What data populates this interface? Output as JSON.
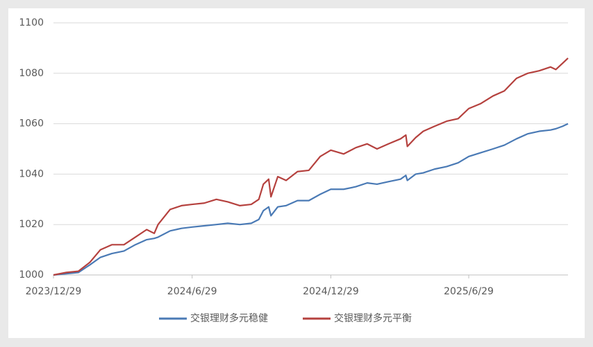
{
  "chart_data": {
    "type": "line",
    "x": [
      "2023/12/29",
      "2024/1/15",
      "2024/1/31",
      "2024/2/15",
      "2024/2/29",
      "2024/3/15",
      "2024/3/31",
      "2024/4/15",
      "2024/4/30",
      "2024/5/10",
      "2024/5/15",
      "2024/5/31",
      "2024/6/15",
      "2024/6/29",
      "2024/7/15",
      "2024/7/31",
      "2024/8/15",
      "2024/8/31",
      "2024/9/15",
      "2024/9/25",
      "2024/10/1",
      "2024/10/8",
      "2024/10/11",
      "2024/10/20",
      "2024/10/31",
      "2024/11/15",
      "2024/11/30",
      "2024/12/15",
      "2024/12/29",
      "2025/1/15",
      "2025/1/31",
      "2025/2/15",
      "2025/2/28",
      "2025/3/15",
      "2025/3/31",
      "2025/4/7",
      "2025/4/9",
      "2025/4/20",
      "2025/4/30",
      "2025/5/15",
      "2025/5/31",
      "2025/6/15",
      "2025/6/29",
      "2025/7/15",
      "2025/7/31",
      "2025/8/15",
      "2025/8/31",
      "2025/9/15",
      "2025/9/30",
      "2025/10/15",
      "2025/10/22",
      "2025/10/31",
      "2025/11/7"
    ],
    "series": [
      {
        "name": "交银理财多元稳健",
        "color": "#4a7ab5",
        "values": [
          1000,
          1000.5,
          1001,
          1004,
          1007,
          1008.5,
          1009.5,
          1012,
          1014,
          1014.5,
          1015,
          1017.5,
          1018.5,
          1019,
          1019.5,
          1020,
          1020.5,
          1020,
          1020.5,
          1022,
          1025.5,
          1027,
          1023.5,
          1027,
          1027.5,
          1029.5,
          1029.5,
          1032,
          1034,
          1034,
          1035,
          1036.5,
          1036,
          1037,
          1038,
          1039.5,
          1037.5,
          1040,
          1040.5,
          1042,
          1043,
          1044.5,
          1047,
          1048.5,
          1050,
          1051.5,
          1054,
          1056,
          1057,
          1057.5,
          1058,
          1059,
          1060
        ]
      },
      {
        "name": "交银理财多元平衡",
        "color": "#b5413e",
        "values": [
          1000,
          1001,
          1001.5,
          1005,
          1010,
          1012,
          1012,
          1015,
          1018,
          1016.5,
          1020,
          1026,
          1027.5,
          1028,
          1028.5,
          1030,
          1029,
          1027.5,
          1028,
          1030,
          1036,
          1038,
          1031,
          1039,
          1037.5,
          1041,
          1041.5,
          1047,
          1049.5,
          1048,
          1050.5,
          1052,
          1050,
          1052,
          1054,
          1055.5,
          1051,
          1054.5,
          1057,
          1059,
          1061,
          1062,
          1066,
          1068,
          1071,
          1073,
          1078,
          1080,
          1081,
          1082.5,
          1081.5,
          1084,
          1086
        ]
      }
    ],
    "xlim": [
      "2023/12/29",
      "2025/11/7"
    ],
    "xticks": [
      "2023/12/29",
      "2024/6/29",
      "2024/12/29",
      "2025/6/29"
    ],
    "ylim": [
      1000,
      1100
    ],
    "yticks": [
      1000,
      1020,
      1040,
      1060,
      1080,
      1100
    ],
    "grid": true
  }
}
